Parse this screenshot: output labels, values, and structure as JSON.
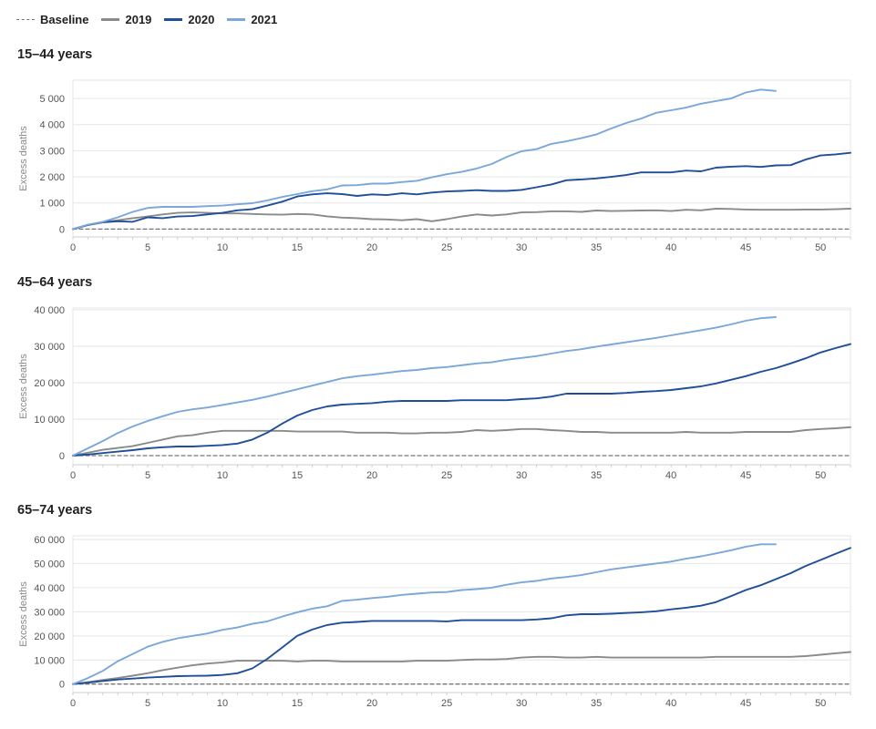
{
  "legend": {
    "items": [
      {
        "label": "Baseline",
        "color": "#777777",
        "dashed": true
      },
      {
        "label": "2019",
        "color": "#8a8a8a",
        "dashed": false
      },
      {
        "label": "2020",
        "color": "#1f4e9a",
        "dashed": false
      },
      {
        "label": "2021",
        "color": "#7ba7d9",
        "dashed": false
      }
    ]
  },
  "chart_data": [
    {
      "type": "line",
      "title": "15–44 years",
      "ylabel": "Excess deaths",
      "xlabel": "",
      "xlim": [
        0,
        52
      ],
      "ylim": [
        -300,
        5700
      ],
      "yticks": [
        0,
        1000,
        2000,
        3000,
        4000,
        5000
      ],
      "ytick_labels": [
        "0",
        "1 000",
        "2 000",
        "3 000",
        "4 000",
        "5 000"
      ],
      "xticks": [
        0,
        5,
        10,
        15,
        20,
        25,
        30,
        35,
        40,
        45,
        50
      ],
      "series": [
        {
          "name": "Baseline",
          "color": "#777777",
          "dashed": true,
          "x": [
            0,
            52
          ],
          "y": [
            0,
            0
          ]
        },
        {
          "name": "2019",
          "color": "#8a8a8a",
          "x": [
            0,
            1,
            2,
            3,
            4,
            5,
            6,
            7,
            8,
            9,
            10,
            11,
            12,
            13,
            14,
            15,
            16,
            17,
            18,
            19,
            20,
            21,
            22,
            23,
            24,
            25,
            26,
            27,
            28,
            29,
            30,
            31,
            32,
            33,
            34,
            35,
            36,
            37,
            38,
            39,
            40,
            41,
            42,
            43,
            44,
            45,
            46,
            47,
            48,
            49,
            50,
            51,
            52
          ],
          "y": [
            0,
            150,
            260,
            340,
            420,
            480,
            560,
            620,
            640,
            620,
            600,
            600,
            580,
            560,
            550,
            580,
            560,
            490,
            440,
            420,
            380,
            370,
            340,
            380,
            300,
            380,
            480,
            560,
            520,
            560,
            640,
            650,
            680,
            680,
            660,
            710,
            690,
            700,
            710,
            720,
            690,
            740,
            720,
            780,
            770,
            750,
            740,
            740,
            740,
            750,
            750,
            760,
            780
          ]
        },
        {
          "name": "2020",
          "color": "#1f4e9a",
          "x": [
            0,
            1,
            2,
            3,
            4,
            5,
            6,
            7,
            8,
            9,
            10,
            11,
            12,
            13,
            14,
            15,
            16,
            17,
            18,
            19,
            20,
            21,
            22,
            23,
            24,
            25,
            26,
            27,
            28,
            29,
            30,
            31,
            32,
            33,
            34,
            35,
            36,
            37,
            38,
            39,
            40,
            41,
            42,
            43,
            44,
            45,
            46,
            47,
            48,
            49,
            50,
            51,
            52
          ],
          "y": [
            0,
            160,
            260,
            300,
            280,
            450,
            420,
            480,
            500,
            560,
            620,
            720,
            760,
            900,
            1050,
            1250,
            1330,
            1370,
            1340,
            1270,
            1330,
            1300,
            1370,
            1330,
            1400,
            1440,
            1460,
            1490,
            1460,
            1460,
            1500,
            1600,
            1710,
            1870,
            1900,
            1940,
            2000,
            2070,
            2170,
            2170,
            2170,
            2240,
            2210,
            2350,
            2390,
            2410,
            2380,
            2440,
            2450,
            2660,
            2820,
            2860,
            2920
          ]
        },
        {
          "name": "2021",
          "color": "#7ba7d9",
          "x": [
            0,
            1,
            2,
            3,
            4,
            5,
            6,
            7,
            8,
            9,
            10,
            11,
            12,
            13,
            14,
            15,
            16,
            17,
            18,
            19,
            20,
            21,
            22,
            23,
            24,
            25,
            26,
            27,
            28,
            29,
            30,
            31,
            32,
            33,
            34,
            35,
            36,
            37,
            38,
            39,
            40,
            41,
            42,
            43,
            44,
            45,
            46,
            47
          ],
          "y": [
            0,
            170,
            280,
            450,
            660,
            810,
            850,
            850,
            850,
            880,
            900,
            950,
            990,
            1100,
            1230,
            1340,
            1450,
            1520,
            1670,
            1680,
            1740,
            1740,
            1800,
            1850,
            1980,
            2100,
            2190,
            2320,
            2490,
            2760,
            2980,
            3060,
            3260,
            3360,
            3480,
            3620,
            3850,
            4060,
            4230,
            4450,
            4550,
            4650,
            4800,
            4900,
            5000,
            5230,
            5340,
            5290
          ]
        }
      ]
    },
    {
      "type": "line",
      "title": "45–64 years",
      "ylabel": "Excess deaths",
      "xlabel": "",
      "xlim": [
        0,
        52
      ],
      "ylim": [
        -2500,
        40500
      ],
      "yticks": [
        0,
        10000,
        20000,
        30000,
        40000
      ],
      "ytick_labels": [
        "0",
        "10 000",
        "20 000",
        "30 000",
        "40 000"
      ],
      "xticks": [
        0,
        5,
        10,
        15,
        20,
        25,
        30,
        35,
        40,
        45,
        50
      ],
      "series": [
        {
          "name": "Baseline",
          "color": "#777777",
          "dashed": true,
          "x": [
            0,
            52
          ],
          "y": [
            0,
            0
          ]
        },
        {
          "name": "2019",
          "color": "#8a8a8a",
          "x": [
            0,
            1,
            2,
            3,
            4,
            5,
            6,
            7,
            8,
            9,
            10,
            11,
            12,
            13,
            14,
            15,
            16,
            17,
            18,
            19,
            20,
            21,
            22,
            23,
            24,
            25,
            26,
            27,
            28,
            29,
            30,
            31,
            32,
            33,
            34,
            35,
            36,
            37,
            38,
            39,
            40,
            41,
            42,
            43,
            44,
            45,
            46,
            47,
            48,
            49,
            50,
            51,
            52
          ],
          "y": [
            0,
            800,
            1600,
            2100,
            2600,
            3500,
            4400,
            5300,
            5600,
            6300,
            6800,
            6800,
            6800,
            6800,
            6800,
            6600,
            6600,
            6600,
            6600,
            6300,
            6300,
            6300,
            6100,
            6100,
            6300,
            6300,
            6500,
            7000,
            6800,
            7000,
            7300,
            7300,
            7000,
            6800,
            6500,
            6500,
            6300,
            6300,
            6300,
            6300,
            6300,
            6500,
            6300,
            6300,
            6300,
            6500,
            6500,
            6500,
            6500,
            7000,
            7300,
            7500,
            7800
          ]
        },
        {
          "name": "2020",
          "color": "#1f4e9a",
          "x": [
            0,
            1,
            2,
            3,
            4,
            5,
            6,
            7,
            8,
            9,
            10,
            11,
            12,
            13,
            14,
            15,
            16,
            17,
            18,
            19,
            20,
            21,
            22,
            23,
            24,
            25,
            26,
            27,
            28,
            29,
            30,
            31,
            32,
            33,
            34,
            35,
            36,
            37,
            38,
            39,
            40,
            41,
            42,
            43,
            44,
            45,
            46,
            47,
            48,
            49,
            50,
            51,
            52
          ],
          "y": [
            0,
            300,
            700,
            1100,
            1500,
            2000,
            2300,
            2500,
            2500,
            2700,
            2900,
            3300,
            4400,
            6300,
            8800,
            11000,
            12500,
            13500,
            14000,
            14200,
            14400,
            14800,
            15000,
            15000,
            15000,
            15000,
            15200,
            15200,
            15200,
            15200,
            15500,
            15700,
            16200,
            17000,
            17000,
            17000,
            17000,
            17200,
            17500,
            17700,
            18000,
            18500,
            19000,
            19800,
            20800,
            21800,
            23000,
            24000,
            25300,
            26700,
            28300,
            29500,
            30600
          ]
        },
        {
          "name": "2021",
          "color": "#7ba7d9",
          "x": [
            0,
            1,
            2,
            3,
            4,
            5,
            6,
            7,
            8,
            9,
            10,
            11,
            12,
            13,
            14,
            15,
            16,
            17,
            18,
            19,
            20,
            21,
            22,
            23,
            24,
            25,
            26,
            27,
            28,
            29,
            30,
            31,
            32,
            33,
            34,
            35,
            36,
            37,
            38,
            39,
            40,
            41,
            42,
            43,
            44,
            45,
            46,
            47
          ],
          "y": [
            0,
            2000,
            4000,
            6200,
            8000,
            9500,
            10800,
            12000,
            12700,
            13200,
            13900,
            14600,
            15300,
            16200,
            17200,
            18200,
            19200,
            20200,
            21200,
            21800,
            22200,
            22700,
            23200,
            23500,
            24000,
            24300,
            24800,
            25300,
            25600,
            26300,
            26800,
            27300,
            28000,
            28700,
            29200,
            29900,
            30500,
            31100,
            31700,
            32300,
            33000,
            33700,
            34400,
            35100,
            36000,
            37000,
            37700,
            38000
          ]
        }
      ]
    },
    {
      "type": "line",
      "title": "65–74 years",
      "ylabel": "Excess deaths",
      "xlabel": "",
      "xlim": [
        0,
        52
      ],
      "ylim": [
        -3500,
        61500
      ],
      "yticks": [
        0,
        10000,
        20000,
        30000,
        40000,
        50000,
        60000
      ],
      "ytick_labels": [
        "0",
        "10 000",
        "20 000",
        "30 000",
        "40 000",
        "50 000",
        "60 000"
      ],
      "xticks": [
        0,
        5,
        10,
        15,
        20,
        25,
        30,
        35,
        40,
        45,
        50
      ],
      "series": [
        {
          "name": "Baseline",
          "color": "#777777",
          "dashed": true,
          "x": [
            0,
            52
          ],
          "y": [
            0,
            0
          ]
        },
        {
          "name": "2019",
          "color": "#8a8a8a",
          "x": [
            0,
            1,
            2,
            3,
            4,
            5,
            6,
            7,
            8,
            9,
            10,
            11,
            12,
            13,
            14,
            15,
            16,
            17,
            18,
            19,
            20,
            21,
            22,
            23,
            24,
            25,
            26,
            27,
            28,
            29,
            30,
            31,
            32,
            33,
            34,
            35,
            36,
            37,
            38,
            39,
            40,
            41,
            42,
            43,
            44,
            45,
            46,
            47,
            48,
            49,
            50,
            51,
            52
          ],
          "y": [
            0,
            800,
            1700,
            2500,
            3500,
            4500,
            5800,
            6800,
            7800,
            8500,
            9000,
            9700,
            9700,
            9700,
            9700,
            9400,
            9700,
            9700,
            9400,
            9400,
            9400,
            9400,
            9400,
            9700,
            9700,
            9700,
            10000,
            10200,
            10200,
            10400,
            11000,
            11300,
            11300,
            11000,
            11000,
            11300,
            11000,
            11000,
            11000,
            11000,
            11000,
            11000,
            11000,
            11300,
            11300,
            11300,
            11300,
            11300,
            11300,
            11600,
            12200,
            12800,
            13300
          ]
        },
        {
          "name": "2020",
          "color": "#1f4e9a",
          "x": [
            0,
            1,
            2,
            3,
            4,
            5,
            6,
            7,
            8,
            9,
            10,
            11,
            12,
            13,
            14,
            15,
            16,
            17,
            18,
            19,
            20,
            21,
            22,
            23,
            24,
            25,
            26,
            27,
            28,
            29,
            30,
            31,
            32,
            33,
            34,
            35,
            36,
            37,
            38,
            39,
            40,
            41,
            42,
            43,
            44,
            45,
            46,
            47,
            48,
            49,
            50,
            51,
            52
          ],
          "y": [
            0,
            600,
            1300,
            1900,
            2300,
            2700,
            3000,
            3300,
            3400,
            3500,
            3800,
            4500,
            6500,
            10500,
            15200,
            20000,
            22600,
            24500,
            25500,
            25800,
            26200,
            26200,
            26200,
            26200,
            26200,
            26000,
            26500,
            26500,
            26500,
            26500,
            26500,
            26800,
            27300,
            28500,
            29000,
            29000,
            29200,
            29500,
            29800,
            30200,
            31000,
            31700,
            32500,
            34000,
            36500,
            39000,
            41000,
            43500,
            46000,
            49000,
            51500,
            54000,
            56500
          ]
        },
        {
          "name": "2021",
          "color": "#7ba7d9",
          "x": [
            0,
            1,
            2,
            3,
            4,
            5,
            6,
            7,
            8,
            9,
            10,
            11,
            12,
            13,
            14,
            15,
            16,
            17,
            18,
            19,
            20,
            21,
            22,
            23,
            24,
            25,
            26,
            27,
            28,
            29,
            30,
            31,
            32,
            33,
            34,
            35,
            36,
            37,
            38,
            39,
            40,
            41,
            42,
            43,
            44,
            45,
            46,
            47
          ],
          "y": [
            0,
            2500,
            5500,
            9500,
            12500,
            15500,
            17500,
            19000,
            20000,
            21000,
            22500,
            23500,
            25000,
            26000,
            28000,
            29800,
            31300,
            32300,
            34500,
            35000,
            35700,
            36200,
            37000,
            37500,
            38000,
            38200,
            39000,
            39400,
            40000,
            41200,
            42200,
            42800,
            43800,
            44400,
            45200,
            46400,
            47600,
            48400,
            49200,
            50000,
            50800,
            52000,
            53000,
            54200,
            55500,
            57000,
            58000,
            58000
          ]
        }
      ]
    }
  ]
}
